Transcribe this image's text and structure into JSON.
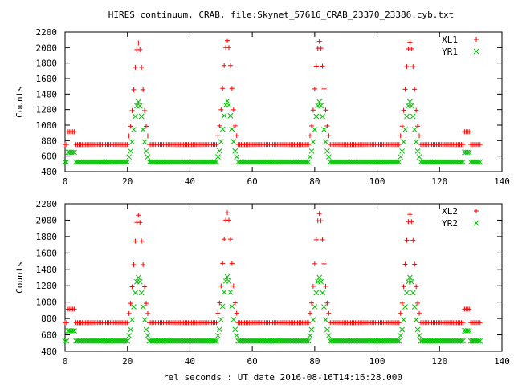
{
  "title": "HIRES continuum, CRAB, file:Skynet_57616_CRAB_23370_23386.cyb.txt",
  "xlabel": "rel seconds : UT date 2016-08-16T14:16:28.000",
  "colors": {
    "s1": "#ff0000",
    "s2": "#00c000"
  },
  "chart_data": [
    {
      "type": "scatter",
      "ylabel": "Counts",
      "xlim": [
        0,
        140
      ],
      "ylim": [
        400,
        2200
      ],
      "xticks": [
        0,
        20,
        40,
        60,
        80,
        100,
        120,
        140
      ],
      "yticks": [
        400,
        600,
        800,
        1000,
        1200,
        1400,
        1600,
        1800,
        2000,
        2200
      ],
      "legend_position": "top-right",
      "series": [
        {
          "name": "XL1",
          "marker": "plus",
          "color": "#ff0000",
          "model": {
            "sample_step": 0.5,
            "x_range": [
              0,
              133
            ],
            "baseline": 750,
            "cal_segments": [
              {
                "x": [
                  1,
                  3
                ],
                "value": 915
              },
              {
                "x": [
                  128,
                  129.5
                ],
                "value": 915
              }
            ],
            "peaks": [
              {
                "x": 23.5,
                "value": 2060
              },
              {
                "x": 52,
                "value": 2090
              },
              {
                "x": 81.5,
                "value": 2080
              },
              {
                "x": 110.5,
                "value": 2070
              }
            ]
          }
        },
        {
          "name": "YR1",
          "marker": "cross",
          "color": "#00c000",
          "model": {
            "sample_step": 0.5,
            "x_range": [
              0,
              133
            ],
            "baseline": 525,
            "cal_segments": [
              {
                "x": [
                  1,
                  3
                ],
                "value": 650
              },
              {
                "x": [
                  128,
                  129.5
                ],
                "value": 650
              }
            ],
            "peaks": [
              {
                "x": 23.5,
                "value": 1300
              },
              {
                "x": 52,
                "value": 1310
              },
              {
                "x": 81.5,
                "value": 1300
              },
              {
                "x": 110.5,
                "value": 1300
              }
            ]
          }
        }
      ]
    },
    {
      "type": "scatter",
      "ylabel": "Counts",
      "xlim": [
        0,
        140
      ],
      "ylim": [
        400,
        2200
      ],
      "xticks": [
        0,
        20,
        40,
        60,
        80,
        100,
        120,
        140
      ],
      "yticks": [
        400,
        600,
        800,
        1000,
        1200,
        1400,
        1600,
        1800,
        2000,
        2200
      ],
      "legend_position": "top-right",
      "series": [
        {
          "name": "XL2",
          "marker": "plus",
          "color": "#ff0000",
          "model": {
            "sample_step": 0.5,
            "x_range": [
              0,
              133
            ],
            "baseline": 750,
            "cal_segments": [
              {
                "x": [
                  1,
                  3
                ],
                "value": 915
              },
              {
                "x": [
                  128,
                  129.5
                ],
                "value": 915
              }
            ],
            "peaks": [
              {
                "x": 23.5,
                "value": 2060
              },
              {
                "x": 52,
                "value": 2090
              },
              {
                "x": 81.5,
                "value": 2080
              },
              {
                "x": 110.5,
                "value": 2070
              }
            ]
          }
        },
        {
          "name": "YR2",
          "marker": "cross",
          "color": "#00c000",
          "model": {
            "sample_step": 0.5,
            "x_range": [
              0,
              133
            ],
            "baseline": 525,
            "cal_segments": [
              {
                "x": [
                  1,
                  3
                ],
                "value": 650
              },
              {
                "x": [
                  128,
                  129.5
                ],
                "value": 650
              }
            ],
            "peaks": [
              {
                "x": 23.5,
                "value": 1300
              },
              {
                "x": 52,
                "value": 1310
              },
              {
                "x": 81.5,
                "value": 1300
              },
              {
                "x": 110.5,
                "value": 1300
              }
            ]
          }
        }
      ]
    }
  ]
}
